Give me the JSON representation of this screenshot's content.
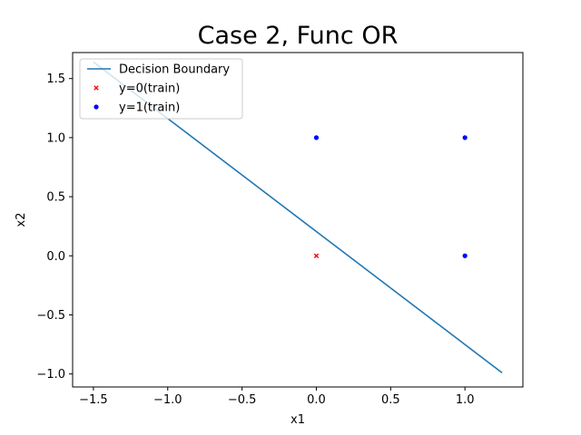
{
  "chart_data": {
    "type": "scatter",
    "title": "Case 2, Func OR",
    "xlabel": "x1",
    "ylabel": "x2",
    "xlim": [
      -1.64,
      1.39
    ],
    "ylim": [
      -1.11,
      1.72
    ],
    "xticks": [
      -1.5,
      -1.0,
      -0.5,
      0.0,
      0.5,
      1.0
    ],
    "xtick_labels": [
      "−1.5",
      "−1.0",
      "−0.5",
      "0.0",
      "0.5",
      "1.0"
    ],
    "yticks": [
      -1.0,
      -0.5,
      0.0,
      0.5,
      1.0,
      1.5
    ],
    "ytick_labels": [
      "−1.0",
      "−0.5",
      "0.0",
      "0.5",
      "1.0",
      "1.5"
    ],
    "grid": false,
    "legend_position": "top-left",
    "series": [
      {
        "name": "Decision Boundary",
        "kind": "line",
        "color": "#1f77b4",
        "x": [
          -1.5,
          1.25
        ],
        "y": [
          1.64,
          -0.99
        ]
      },
      {
        "name": "y=0(train)",
        "kind": "scatter",
        "marker": "x",
        "color": "#ff0000",
        "x": [
          0
        ],
        "y": [
          0
        ]
      },
      {
        "name": "y=1(train)",
        "kind": "scatter",
        "marker": "o",
        "color": "#0000ff",
        "x": [
          0,
          1,
          1
        ],
        "y": [
          1,
          1,
          0
        ]
      }
    ]
  }
}
